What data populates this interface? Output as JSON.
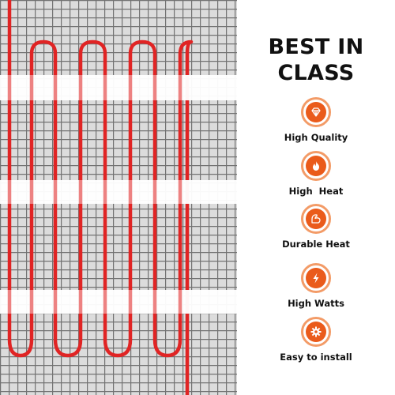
{
  "panel": {
    "headline_line1": "BEST IN",
    "headline_line2": "CLASS"
  },
  "features": [
    {
      "label": "High Quality",
      "icon": "diamond-icon"
    },
    {
      "label": "High  Heat",
      "icon": "flame-icon"
    },
    {
      "label": "Durable Heat",
      "icon": "flexed-arm-icon"
    },
    {
      "label": "High Watts",
      "icon": "lightning-bolt-icon"
    },
    {
      "label": "Easy to install",
      "icon": "gear-icon"
    }
  ],
  "colors": {
    "accent": "#ea5b1b",
    "badge_ring": "#f39b67",
    "cable": "#e02424",
    "mesh": "#6f6f6f",
    "tape": "#ffffff"
  }
}
